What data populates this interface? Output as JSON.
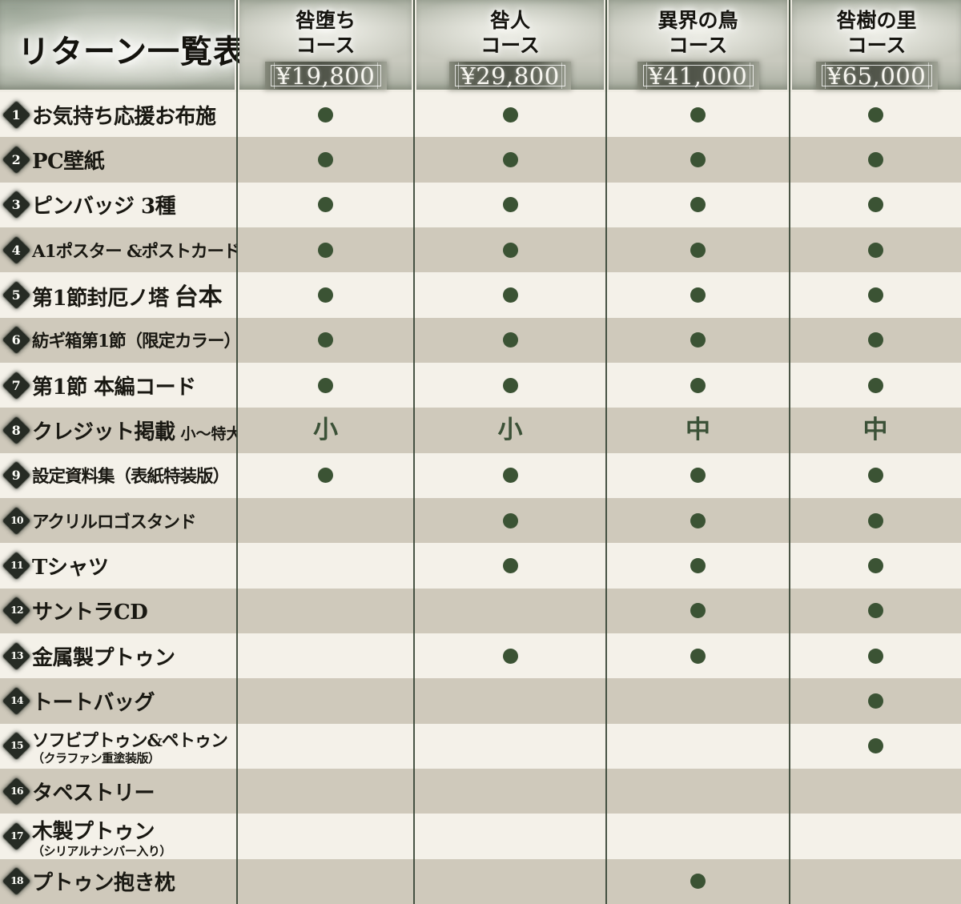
{
  "title": "リターン一覧表",
  "colors": {
    "dot_green": "#3b5334",
    "rank_text_green": "#3b5137",
    "row_light": "#f4f1e9",
    "row_dark": "#cfc9bb",
    "separator_line": "#3a4736",
    "badge_dark": "#262b24",
    "header_sage": "#bdc3b7",
    "price_box_dark": "#505449"
  },
  "courses": [
    {
      "name": "咎堕ち",
      "suffix": "コース",
      "price": "¥19,800"
    },
    {
      "name": "咎人",
      "suffix": "コース",
      "price": "¥29,800"
    },
    {
      "name": "異界の鳥",
      "suffix": "コース",
      "price": "¥41,000"
    },
    {
      "name": "咎樹の里",
      "suffix": "コース",
      "price": "¥65,000"
    }
  ],
  "rows": [
    {
      "num": "1",
      "label": "お気持ち応援お布施",
      "cells": [
        "●",
        "●",
        "●",
        "●"
      ]
    },
    {
      "num": "2",
      "label": "PC壁紙",
      "cells": [
        "●",
        "●",
        "●",
        "●"
      ]
    },
    {
      "num": "3",
      "label": "ピンバッジ 3種",
      "cells": [
        "●",
        "●",
        "●",
        "●"
      ]
    },
    {
      "num": "4",
      "label": "A1ポスター &ポストカード",
      "cells": [
        "●",
        "●",
        "●",
        "●"
      ]
    },
    {
      "num": "5",
      "label": "第1節封厄ノ塔",
      "big": "台本",
      "cells": [
        "●",
        "●",
        "●",
        "●"
      ]
    },
    {
      "num": "6",
      "label": "紡ギ箱第1節（限定カラー）",
      "cells": [
        "●",
        "●",
        "●",
        "●"
      ]
    },
    {
      "num": "7",
      "label": "第1節 本編コード",
      "cells": [
        "●",
        "●",
        "●",
        "●"
      ]
    },
    {
      "num": "8",
      "label": "クレジット掲載",
      "small": "小〜特大",
      "cells": [
        "小",
        "小",
        "中",
        "中"
      ]
    },
    {
      "num": "9",
      "label": "設定資料集（表紙特装版）",
      "cells": [
        "●",
        "●",
        "●",
        "●"
      ]
    },
    {
      "num": "10",
      "label": "アクリルロゴスタンド",
      "cells": [
        "",
        "●",
        "●",
        "●"
      ]
    },
    {
      "num": "11",
      "label": "Tシャツ",
      "cells": [
        "",
        "●",
        "●",
        "●"
      ]
    },
    {
      "num": "12",
      "label": "サントラCD",
      "cells": [
        "",
        "",
        "●",
        "●"
      ]
    },
    {
      "num": "13",
      "label": "金属製プトゥン",
      "cells": [
        "",
        "●",
        "●",
        "●"
      ]
    },
    {
      "num": "14",
      "label": "トートバッグ",
      "cells": [
        "",
        "",
        "",
        "●"
      ]
    },
    {
      "num": "15",
      "label": "ソフビプトゥン&ペトゥン",
      "sub": "（クラファン重塗装版）",
      "cells": [
        "",
        "",
        "",
        "●"
      ]
    },
    {
      "num": "16",
      "label": "タペストリー",
      "cells": [
        "",
        "",
        "",
        ""
      ]
    },
    {
      "num": "17",
      "label": "木製プトゥン",
      "sub": "（シリアルナンバー入り）",
      "cells": [
        "",
        "",
        "",
        ""
      ]
    },
    {
      "num": "18",
      "label": "プトゥン抱き枕",
      "cells": [
        "",
        "",
        "●",
        ""
      ]
    }
  ],
  "chart_data": {
    "type": "table",
    "title": "リターン一覧表",
    "columns": [
      "リターン",
      "咎堕ちコース ¥19,800",
      "咎人コース ¥29,800",
      "異界の鳥コース ¥41,000",
      "咎樹の里コース ¥65,000"
    ],
    "rows": [
      [
        "お気持ち応援お布施",
        "●",
        "●",
        "●",
        "●"
      ],
      [
        "PC壁紙",
        "●",
        "●",
        "●",
        "●"
      ],
      [
        "ピンバッジ 3種",
        "●",
        "●",
        "●",
        "●"
      ],
      [
        "A1ポスター &ポストカード",
        "●",
        "●",
        "●",
        "●"
      ],
      [
        "第1節封厄ノ塔 台本",
        "●",
        "●",
        "●",
        "●"
      ],
      [
        "紡ギ箱第1節（限定カラー）",
        "●",
        "●",
        "●",
        "●"
      ],
      [
        "第1節 本編コード",
        "●",
        "●",
        "●",
        "●"
      ],
      [
        "クレジット掲載 小〜特大",
        "小",
        "小",
        "中",
        "中"
      ],
      [
        "設定資料集（表紙特装版）",
        "●",
        "●",
        "●",
        "●"
      ],
      [
        "アクリルロゴスタンド",
        "",
        "●",
        "●",
        "●"
      ],
      [
        "Tシャツ",
        "",
        "●",
        "●",
        "●"
      ],
      [
        "サントラCD",
        "",
        "",
        "●",
        "●"
      ],
      [
        "金属製プトゥン",
        "",
        "●",
        "●",
        "●"
      ],
      [
        "トートバッグ",
        "",
        "",
        "",
        "●"
      ],
      [
        "ソフビプトゥン&ペトゥン（クラファン重塗装版）",
        "",
        "",
        "",
        "●"
      ],
      [
        "タペストリー",
        "",
        "",
        "",
        ""
      ],
      [
        "木製プトゥン（シリアルナンバー入り）",
        "",
        "",
        "",
        ""
      ],
      [
        "プトゥン抱き枕",
        "",
        "",
        "●",
        ""
      ]
    ]
  }
}
